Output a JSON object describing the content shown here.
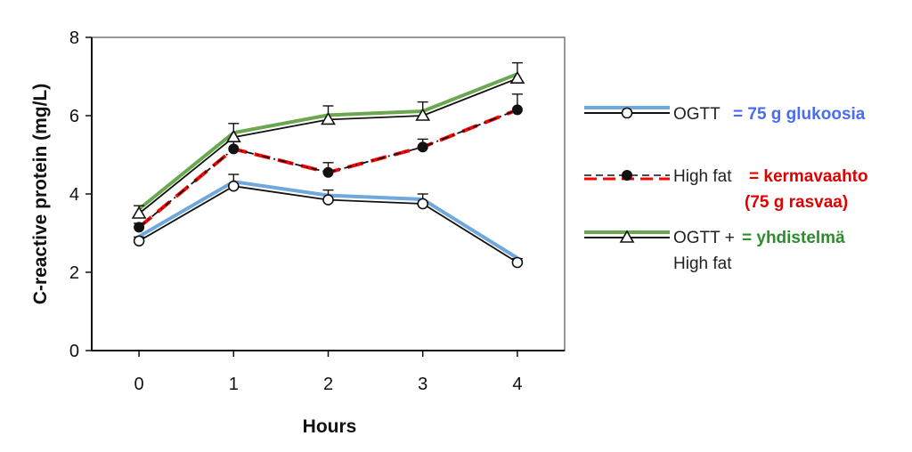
{
  "chart_data": {
    "type": "line",
    "xlabel": "Hours",
    "ylabel": "C-reactive protein (mg/L)",
    "categories": [
      "0",
      "1",
      "2",
      "3",
      "4"
    ],
    "x": [
      0,
      1,
      2,
      3,
      4
    ],
    "xlim": [
      -0.5,
      4.5
    ],
    "ylim": [
      0,
      8
    ],
    "y_ticks": [
      "0",
      "2",
      "4",
      "6",
      "8"
    ],
    "grid": false,
    "legend_position": "right",
    "series": [
      {
        "name": "OGTT",
        "note": "= 75 g  glukoosia",
        "note_color": "#4a6cf0",
        "highlight_color": "#6fa8dc",
        "marker": "open-circle",
        "line_style": "solid",
        "values": [
          2.8,
          4.2,
          3.85,
          3.75,
          2.25
        ],
        "error": [
          0.1,
          0.3,
          0.25,
          0.25,
          0.1
        ]
      },
      {
        "name": "High fat",
        "note": "= kermavaahto",
        "note2": "(75 g rasvaa)",
        "note_color": "#e00000",
        "highlight_color": "#ff0000",
        "marker": "filled-circle",
        "line_style": "dashed",
        "values": [
          3.15,
          5.15,
          4.55,
          5.2,
          6.15
        ],
        "error": [
          0.1,
          0.2,
          0.25,
          0.2,
          0.4
        ]
      },
      {
        "name": "OGTT +",
        "name2": "High fat",
        "note": "= yhdistelmä",
        "note_color": "#2e8b2e",
        "highlight_color": "#6aa84f",
        "marker": "open-triangle",
        "line_style": "solid",
        "values": [
          3.5,
          5.45,
          5.9,
          6.0,
          6.95
        ],
        "error": [
          0.2,
          0.35,
          0.35,
          0.35,
          0.4
        ]
      }
    ]
  }
}
